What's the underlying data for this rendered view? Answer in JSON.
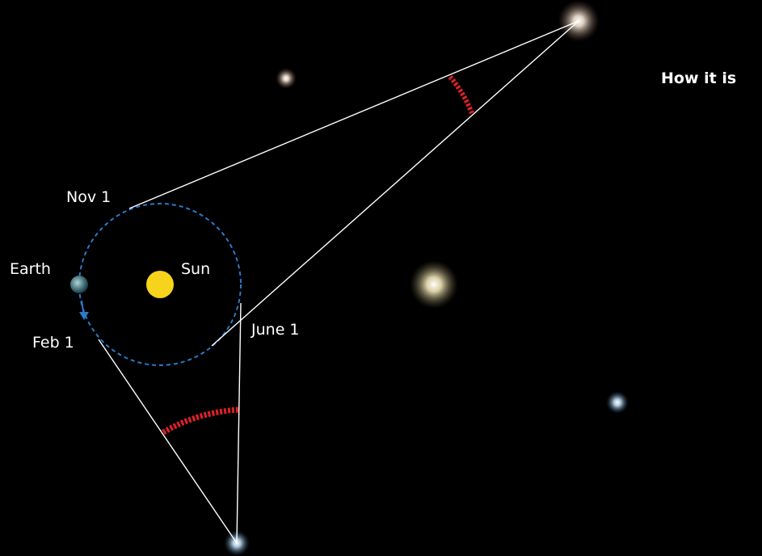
{
  "title": "How it is",
  "labels": {
    "nov": "Nov 1",
    "earth": "Earth",
    "sun": "Sun",
    "feb": "Feb 1",
    "june": "June 1"
  }
}
